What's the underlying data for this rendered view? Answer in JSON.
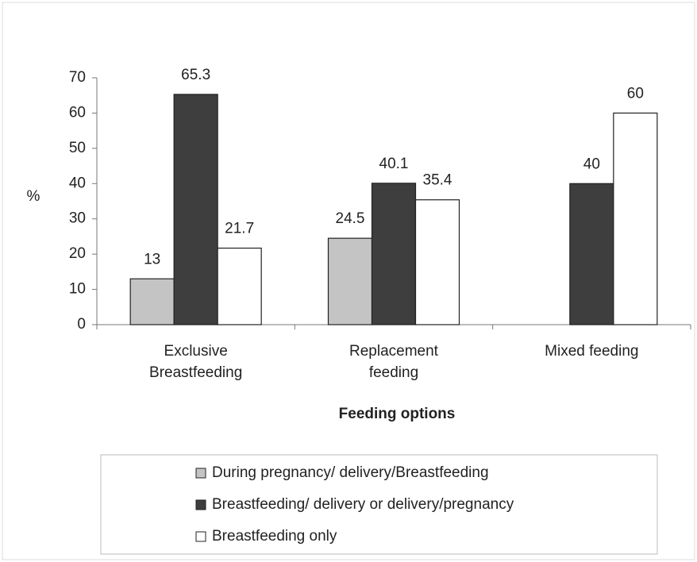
{
  "chart_data": {
    "type": "bar",
    "categories": [
      "Exclusive Breastfeeding",
      "Replacement feeding",
      "Mixed feeding"
    ],
    "x_label": "Feeding options",
    "y_label": "%",
    "series": [
      {
        "name": "During pregnancy/ delivery/Breastfeeding",
        "color": "#c4c4c4",
        "values": [
          13,
          24.5,
          null
        ]
      },
      {
        "name": "Breastfeeding/ delivery or delivery/pregnancy",
        "color": "#3e3e3e",
        "values": [
          65.3,
          40.1,
          40
        ]
      },
      {
        "name": "Breastfeeding only",
        "color": "#ffffff",
        "values": [
          21.7,
          35.4,
          60
        ]
      }
    ],
    "ylim": [
      0,
      70
    ],
    "yticks": [
      0,
      10,
      20,
      30,
      40,
      50,
      60,
      70
    ],
    "legend": "bottom"
  }
}
